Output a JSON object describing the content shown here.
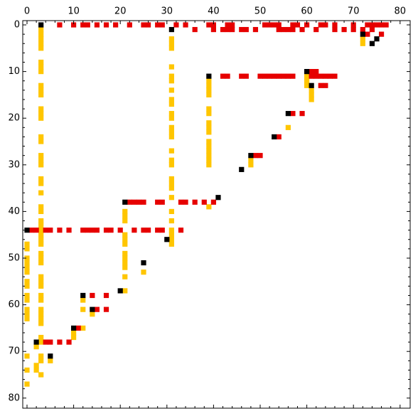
{
  "chart_data": {
    "type": "heatmap",
    "title": "",
    "xlabel": "",
    "ylabel": "",
    "xlim": [
      0,
      80
    ],
    "ylim": [
      80,
      0
    ],
    "xticks": [
      0,
      10,
      20,
      30,
      40,
      50,
      60,
      70,
      80
    ],
    "yticks": [
      0,
      10,
      20,
      30,
      40,
      50,
      60,
      70,
      80
    ],
    "grid": false,
    "colors": {
      "black": "#000000",
      "red": "#e60000",
      "yellow": "#ffc600"
    },
    "cells": {
      "black": [
        [
          3,
          0
        ],
        [
          31,
          1
        ],
        [
          72,
          2
        ],
        [
          75,
          3
        ],
        [
          74,
          4
        ],
        [
          39,
          11
        ],
        [
          60,
          10
        ],
        [
          61,
          13
        ],
        [
          56,
          19
        ],
        [
          53,
          24
        ],
        [
          48,
          28
        ],
        [
          46,
          31
        ],
        [
          41,
          37
        ],
        [
          21,
          38
        ],
        [
          0,
          44
        ],
        [
          30,
          46
        ],
        [
          25,
          51
        ],
        [
          20,
          57
        ],
        [
          12,
          58
        ],
        [
          14,
          61
        ],
        [
          10,
          65
        ],
        [
          2,
          68
        ],
        [
          5,
          71
        ]
      ],
      "red": [
        [
          7,
          0
        ],
        [
          10,
          0
        ],
        [
          12,
          0
        ],
        [
          13,
          0
        ],
        [
          15,
          0
        ],
        [
          17,
          0
        ],
        [
          19,
          0
        ],
        [
          22,
          0
        ],
        [
          25,
          0
        ],
        [
          26,
          0
        ],
        [
          28,
          0
        ],
        [
          29,
          0
        ],
        [
          32,
          0
        ],
        [
          34,
          0
        ],
        [
          39,
          0
        ],
        [
          40,
          0
        ],
        [
          43,
          0
        ],
        [
          44,
          0
        ],
        [
          51,
          0
        ],
        [
          52,
          0
        ],
        [
          53,
          0
        ],
        [
          54,
          0
        ],
        [
          57,
          0
        ],
        [
          58,
          0
        ],
        [
          60,
          0
        ],
        [
          63,
          0
        ],
        [
          64,
          0
        ],
        [
          66,
          0
        ],
        [
          70,
          0
        ],
        [
          73,
          0
        ],
        [
          74,
          0
        ],
        [
          75,
          0
        ],
        [
          76,
          0
        ],
        [
          77,
          0
        ],
        [
          36,
          1
        ],
        [
          40,
          1
        ],
        [
          42,
          1
        ],
        [
          43,
          1
        ],
        [
          44,
          1
        ],
        [
          46,
          1
        ],
        [
          47,
          1
        ],
        [
          49,
          1
        ],
        [
          54,
          1
        ],
        [
          55,
          1
        ],
        [
          56,
          1
        ],
        [
          57,
          1
        ],
        [
          59,
          1
        ],
        [
          62,
          1
        ],
        [
          66,
          1
        ],
        [
          68,
          1
        ],
        [
          70,
          1
        ],
        [
          72,
          1
        ],
        [
          74,
          1
        ],
        [
          73,
          2
        ],
        [
          76,
          2
        ],
        [
          42,
          11
        ],
        [
          43,
          11
        ],
        [
          46,
          11
        ],
        [
          47,
          11
        ],
        [
          50,
          11
        ],
        [
          51,
          11
        ],
        [
          52,
          11
        ],
        [
          53,
          11
        ],
        [
          54,
          11
        ],
        [
          55,
          11
        ],
        [
          56,
          11
        ],
        [
          57,
          11
        ],
        [
          61,
          10
        ],
        [
          62,
          10
        ],
        [
          61,
          11
        ],
        [
          62,
          11
        ],
        [
          63,
          11
        ],
        [
          64,
          11
        ],
        [
          65,
          11
        ],
        [
          66,
          11
        ],
        [
          63,
          13
        ],
        [
          64,
          13
        ],
        [
          57,
          19
        ],
        [
          59,
          19
        ],
        [
          54,
          24
        ],
        [
          49,
          28
        ],
        [
          50,
          28
        ],
        [
          22,
          38
        ],
        [
          23,
          38
        ],
        [
          24,
          38
        ],
        [
          25,
          38
        ],
        [
          28,
          38
        ],
        [
          29,
          38
        ],
        [
          33,
          38
        ],
        [
          34,
          38
        ],
        [
          36,
          38
        ],
        [
          38,
          38
        ],
        [
          40,
          38
        ],
        [
          1,
          44
        ],
        [
          2,
          44
        ],
        [
          4,
          44
        ],
        [
          5,
          44
        ],
        [
          7,
          44
        ],
        [
          9,
          44
        ],
        [
          12,
          44
        ],
        [
          13,
          44
        ],
        [
          14,
          44
        ],
        [
          15,
          44
        ],
        [
          17,
          44
        ],
        [
          18,
          44
        ],
        [
          20,
          44
        ],
        [
          23,
          44
        ],
        [
          25,
          44
        ],
        [
          26,
          44
        ],
        [
          28,
          44
        ],
        [
          29,
          44
        ],
        [
          33,
          44
        ],
        [
          14,
          58
        ],
        [
          17,
          58
        ],
        [
          15,
          61
        ],
        [
          17,
          61
        ],
        [
          11,
          65
        ],
        [
          4,
          68
        ],
        [
          5,
          68
        ],
        [
          7,
          68
        ],
        [
          9,
          68
        ]
      ],
      "yellow": [
        [
          3,
          1
        ],
        [
          3,
          2
        ],
        [
          3,
          3
        ],
        [
          3,
          4
        ],
        [
          3,
          5
        ],
        [
          3,
          8
        ],
        [
          3,
          9
        ],
        [
          3,
          10
        ],
        [
          3,
          13
        ],
        [
          3,
          14
        ],
        [
          3,
          15
        ],
        [
          3,
          18
        ],
        [
          3,
          19
        ],
        [
          3,
          20
        ],
        [
          3,
          24
        ],
        [
          3,
          25
        ],
        [
          3,
          28
        ],
        [
          3,
          29
        ],
        [
          3,
          30
        ],
        [
          3,
          33
        ],
        [
          3,
          34
        ],
        [
          3,
          36
        ],
        [
          3,
          39
        ],
        [
          3,
          40
        ],
        [
          3,
          42
        ],
        [
          3,
          43
        ],
        [
          3,
          44
        ],
        [
          3,
          45
        ],
        [
          3,
          46
        ],
        [
          3,
          47
        ],
        [
          3,
          49
        ],
        [
          3,
          50
        ],
        [
          3,
          51
        ],
        [
          3,
          54
        ],
        [
          3,
          55
        ],
        [
          3,
          56
        ],
        [
          3,
          58
        ],
        [
          3,
          59
        ],
        [
          3,
          61
        ],
        [
          3,
          62
        ],
        [
          3,
          63
        ],
        [
          3,
          64
        ],
        [
          3,
          67
        ],
        [
          3,
          68
        ],
        [
          3,
          71
        ],
        [
          3,
          72
        ],
        [
          3,
          75
        ],
        [
          0,
          47
        ],
        [
          0,
          48
        ],
        [
          0,
          50
        ],
        [
          0,
          51
        ],
        [
          0,
          52
        ],
        [
          0,
          53
        ],
        [
          0,
          55
        ],
        [
          0,
          56
        ],
        [
          0,
          58
        ],
        [
          0,
          59
        ],
        [
          0,
          61
        ],
        [
          0,
          62
        ],
        [
          0,
          63
        ],
        [
          0,
          71
        ],
        [
          0,
          74
        ],
        [
          0,
          77
        ],
        [
          2,
          69
        ],
        [
          2,
          73
        ],
        [
          2,
          74
        ],
        [
          5,
          72
        ],
        [
          31,
          3
        ],
        [
          31,
          4
        ],
        [
          31,
          5
        ],
        [
          31,
          9
        ],
        [
          31,
          11
        ],
        [
          31,
          12
        ],
        [
          31,
          14
        ],
        [
          31,
          16
        ],
        [
          31,
          17
        ],
        [
          31,
          19
        ],
        [
          31,
          20
        ],
        [
          31,
          22
        ],
        [
          31,
          23
        ],
        [
          31,
          24
        ],
        [
          31,
          27
        ],
        [
          31,
          29
        ],
        [
          31,
          30
        ],
        [
          31,
          33
        ],
        [
          31,
          34
        ],
        [
          31,
          35
        ],
        [
          31,
          37
        ],
        [
          31,
          40
        ],
        [
          31,
          42
        ],
        [
          31,
          44
        ],
        [
          31,
          45
        ],
        [
          31,
          46
        ],
        [
          31,
          47
        ],
        [
          39,
          12
        ],
        [
          39,
          13
        ],
        [
          39,
          14
        ],
        [
          39,
          15
        ],
        [
          39,
          18
        ],
        [
          39,
          19
        ],
        [
          39,
          21
        ],
        [
          39,
          22
        ],
        [
          39,
          23
        ],
        [
          39,
          25
        ],
        [
          39,
          26
        ],
        [
          39,
          27
        ],
        [
          39,
          28
        ],
        [
          39,
          29
        ],
        [
          39,
          30
        ],
        [
          39,
          39
        ],
        [
          60,
          11
        ],
        [
          60,
          12
        ],
        [
          60,
          13
        ],
        [
          61,
          14
        ],
        [
          61,
          15
        ],
        [
          61,
          16
        ],
        [
          56,
          22
        ],
        [
          48,
          29
        ],
        [
          48,
          30
        ],
        [
          21,
          40
        ],
        [
          21,
          41
        ],
        [
          21,
          42
        ],
        [
          21,
          45
        ],
        [
          21,
          46
        ],
        [
          21,
          47
        ],
        [
          21,
          49
        ],
        [
          21,
          50
        ],
        [
          21,
          51
        ],
        [
          21,
          52
        ],
        [
          21,
          54
        ],
        [
          21,
          57
        ],
        [
          25,
          53
        ],
        [
          12,
          59
        ],
        [
          12,
          61
        ],
        [
          14,
          62
        ],
        [
          12,
          65
        ],
        [
          10,
          66
        ],
        [
          10,
          67
        ],
        [
          72,
          3
        ],
        [
          72,
          4
        ]
      ]
    }
  }
}
